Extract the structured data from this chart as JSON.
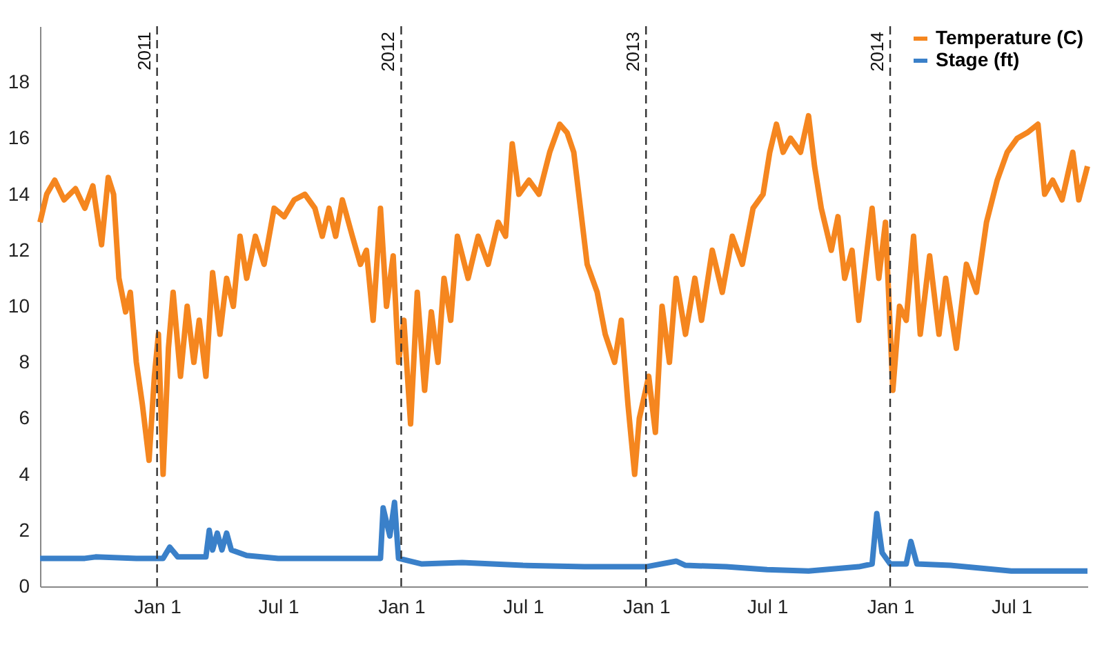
{
  "chart_data": {
    "type": "line",
    "xlim": [
      "2010-07-10",
      "2014-10-23"
    ],
    "xticks": [
      {
        "value": "2011-01-01",
        "label": "Jan 1"
      },
      {
        "value": "2011-07-01",
        "label": "Jul 1"
      },
      {
        "value": "2012-01-01",
        "label": "Jan 1"
      },
      {
        "value": "2012-07-01",
        "label": "Jul 1"
      },
      {
        "value": "2013-01-01",
        "label": "Jan 1"
      },
      {
        "value": "2013-07-01",
        "label": "Jul 1"
      },
      {
        "value": "2014-01-01",
        "label": "Jan 1"
      },
      {
        "value": "2014-07-01",
        "label": "Jul 1"
      }
    ],
    "ylim": [
      0,
      20
    ],
    "yticks": [
      0,
      2,
      4,
      6,
      8,
      10,
      12,
      14,
      16,
      18
    ],
    "grid": false,
    "legend": "top right",
    "ref_lines": [
      {
        "axis": "x",
        "value": "2011-01-01",
        "label": "2011",
        "line_style": "dashed"
      },
      {
        "axis": "x",
        "value": "2012-01-01",
        "label": "2012",
        "line_style": "dashed"
      },
      {
        "axis": "x",
        "value": "2013-01-01",
        "label": "2013",
        "line_style": "dashed"
      },
      {
        "axis": "x",
        "value": "2014-01-01",
        "label": "2014",
        "line_style": "dashed"
      }
    ],
    "series": [
      {
        "name": "Temperature (C)",
        "color": "#f5861f",
        "x": [
          "2010-07-10",
          "2010-07-20",
          "2010-08-01",
          "2010-08-15",
          "2010-09-01",
          "2010-09-15",
          "2010-09-27",
          "2010-10-10",
          "2010-10-20",
          "2010-10-28",
          "2010-11-05",
          "2010-11-15",
          "2010-11-22",
          "2010-12-01",
          "2010-12-10",
          "2010-12-20",
          "2010-12-28",
          "2011-01-03",
          "2011-01-10",
          "2011-01-18",
          "2011-01-25",
          "2011-02-05",
          "2011-02-15",
          "2011-02-25",
          "2011-03-05",
          "2011-03-15",
          "2011-03-25",
          "2011-04-05",
          "2011-04-15",
          "2011-04-25",
          "2011-05-05",
          "2011-05-15",
          "2011-05-28",
          "2011-06-10",
          "2011-06-25",
          "2011-07-10",
          "2011-07-25",
          "2011-08-10",
          "2011-08-25",
          "2011-09-05",
          "2011-09-15",
          "2011-09-25",
          "2011-10-05",
          "2011-10-20",
          "2011-11-01",
          "2011-11-10",
          "2011-11-20",
          "2011-12-01",
          "2011-12-10",
          "2011-12-20",
          "2011-12-28",
          "2012-01-05",
          "2012-01-15",
          "2012-01-25",
          "2012-02-05",
          "2012-02-15",
          "2012-02-25",
          "2012-03-05",
          "2012-03-15",
          "2012-03-25",
          "2012-04-10",
          "2012-04-25",
          "2012-05-10",
          "2012-05-25",
          "2012-06-05",
          "2012-06-15",
          "2012-06-25",
          "2012-07-10",
          "2012-07-25",
          "2012-08-10",
          "2012-08-25",
          "2012-09-05",
          "2012-09-15",
          "2012-09-25",
          "2012-10-05",
          "2012-10-20",
          "2012-11-01",
          "2012-11-15",
          "2012-11-25",
          "2012-12-05",
          "2012-12-15",
          "2012-12-22",
          "2013-01-05",
          "2013-01-15",
          "2013-01-25",
          "2013-02-05",
          "2013-02-15",
          "2013-03-01",
          "2013-03-15",
          "2013-03-25",
          "2013-04-10",
          "2013-04-25",
          "2013-05-10",
          "2013-05-25",
          "2013-06-10",
          "2013-06-25",
          "2013-07-05",
          "2013-07-15",
          "2013-07-25",
          "2013-08-05",
          "2013-08-20",
          "2013-09-01",
          "2013-09-10",
          "2013-09-20",
          "2013-10-05",
          "2013-10-15",
          "2013-10-25",
          "2013-11-05",
          "2013-11-15",
          "2013-11-25",
          "2013-12-05",
          "2013-12-15",
          "2013-12-25",
          "2014-01-05",
          "2014-01-15",
          "2014-01-25",
          "2014-02-05",
          "2014-02-15",
          "2014-03-01",
          "2014-03-15",
          "2014-03-25",
          "2014-04-10",
          "2014-04-25",
          "2014-05-10",
          "2014-05-25",
          "2014-06-10",
          "2014-06-25",
          "2014-07-10",
          "2014-07-25",
          "2014-08-10",
          "2014-08-20",
          "2014-09-01",
          "2014-09-15",
          "2014-10-01",
          "2014-10-10",
          "2014-10-23"
        ],
        "values": [
          13.0,
          14.0,
          14.5,
          13.8,
          14.2,
          13.5,
          14.3,
          12.2,
          14.6,
          14.0,
          11.0,
          9.8,
          10.5,
          8.0,
          6.5,
          4.5,
          7.5,
          9.0,
          4.0,
          8.5,
          10.5,
          7.5,
          10.0,
          8.0,
          9.5,
          7.5,
          11.2,
          9.0,
          11.0,
          10.0,
          12.5,
          11.0,
          12.5,
          11.5,
          13.5,
          13.2,
          13.8,
          14.0,
          13.5,
          12.5,
          13.5,
          12.5,
          13.8,
          12.5,
          11.5,
          12.0,
          9.5,
          13.5,
          10.0,
          11.8,
          8.0,
          9.5,
          5.8,
          10.5,
          7.0,
          9.8,
          8.0,
          11.0,
          9.5,
          12.5,
          11.0,
          12.5,
          11.5,
          13.0,
          12.5,
          15.8,
          14.0,
          14.5,
          14.0,
          15.5,
          16.5,
          16.2,
          15.5,
          13.5,
          11.5,
          10.5,
          9.0,
          8.0,
          9.5,
          6.5,
          4.0,
          6.0,
          7.5,
          5.5,
          10.0,
          8.0,
          11.0,
          9.0,
          11.0,
          9.5,
          12.0,
          10.5,
          12.5,
          11.5,
          13.5,
          14.0,
          15.5,
          16.5,
          15.5,
          16.0,
          15.5,
          16.8,
          15.0,
          13.5,
          12.0,
          13.2,
          11.0,
          12.0,
          9.5,
          11.5,
          13.5,
          11.0,
          13.0,
          7.0,
          10.0,
          9.5,
          12.5,
          9.0,
          11.8,
          9.0,
          11.0,
          8.5,
          11.5,
          10.5,
          13.0,
          14.5,
          15.5,
          16.0,
          16.2,
          16.5,
          14.0,
          14.5,
          13.8,
          15.5,
          13.8,
          15.0
        ]
      },
      {
        "name": "Stage (ft)",
        "color": "#3a80c9",
        "x": [
          "2010-07-10",
          "2010-09-15",
          "2010-10-01",
          "2010-12-01",
          "2011-01-01",
          "2011-01-10",
          "2011-01-20",
          "2011-02-01",
          "2011-03-15",
          "2011-03-20",
          "2011-03-25",
          "2011-04-01",
          "2011-04-08",
          "2011-04-15",
          "2011-04-22",
          "2011-05-15",
          "2011-07-01",
          "2011-10-01",
          "2011-12-01",
          "2011-12-05",
          "2011-12-15",
          "2011-12-22",
          "2011-12-28",
          "2012-02-01",
          "2012-04-01",
          "2012-07-01",
          "2012-10-01",
          "2013-01-01",
          "2013-02-15",
          "2013-03-01",
          "2013-05-01",
          "2013-07-01",
          "2013-09-01",
          "2013-11-15",
          "2013-12-05",
          "2013-12-12",
          "2013-12-20",
          "2014-01-01",
          "2014-01-25",
          "2014-02-01",
          "2014-02-10",
          "2014-04-01",
          "2014-07-01",
          "2014-10-23"
        ],
        "values": [
          1.0,
          1.0,
          1.05,
          1.0,
          1.0,
          1.0,
          1.4,
          1.05,
          1.05,
          2.0,
          1.3,
          1.9,
          1.3,
          1.9,
          1.3,
          1.1,
          1.0,
          1.0,
          1.0,
          2.8,
          1.8,
          3.0,
          1.0,
          0.8,
          0.85,
          0.75,
          0.7,
          0.7,
          0.9,
          0.75,
          0.7,
          0.6,
          0.55,
          0.7,
          0.8,
          2.6,
          1.2,
          0.8,
          0.8,
          1.6,
          0.8,
          0.75,
          0.55,
          0.55
        ]
      }
    ]
  }
}
